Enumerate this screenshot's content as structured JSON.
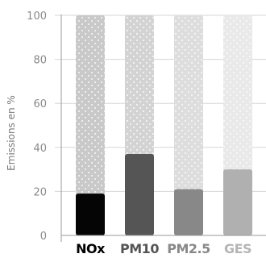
{
  "chart_data": {
    "type": "bar",
    "title": "",
    "xlabel": "",
    "ylabel": "Emissions en %",
    "ylim": [
      0,
      100
    ],
    "yticks": [
      0,
      20,
      40,
      60,
      80,
      100
    ],
    "grid": true,
    "categories": [
      "NOx",
      "PM10",
      "PM2.5",
      "GES"
    ],
    "background_value": 100,
    "values": [
      19,
      37,
      21,
      30
    ],
    "bar_colors": [
      "#050505",
      "#555555",
      "#888888",
      "#b0b0b0"
    ],
    "background_colors": [
      "#c9c9c9",
      "#d3d3d3",
      "#dddddd",
      "#e9e9e9"
    ],
    "label_colors": [
      "#000000",
      "#555555",
      "#888888",
      "#b5b5b5"
    ]
  }
}
